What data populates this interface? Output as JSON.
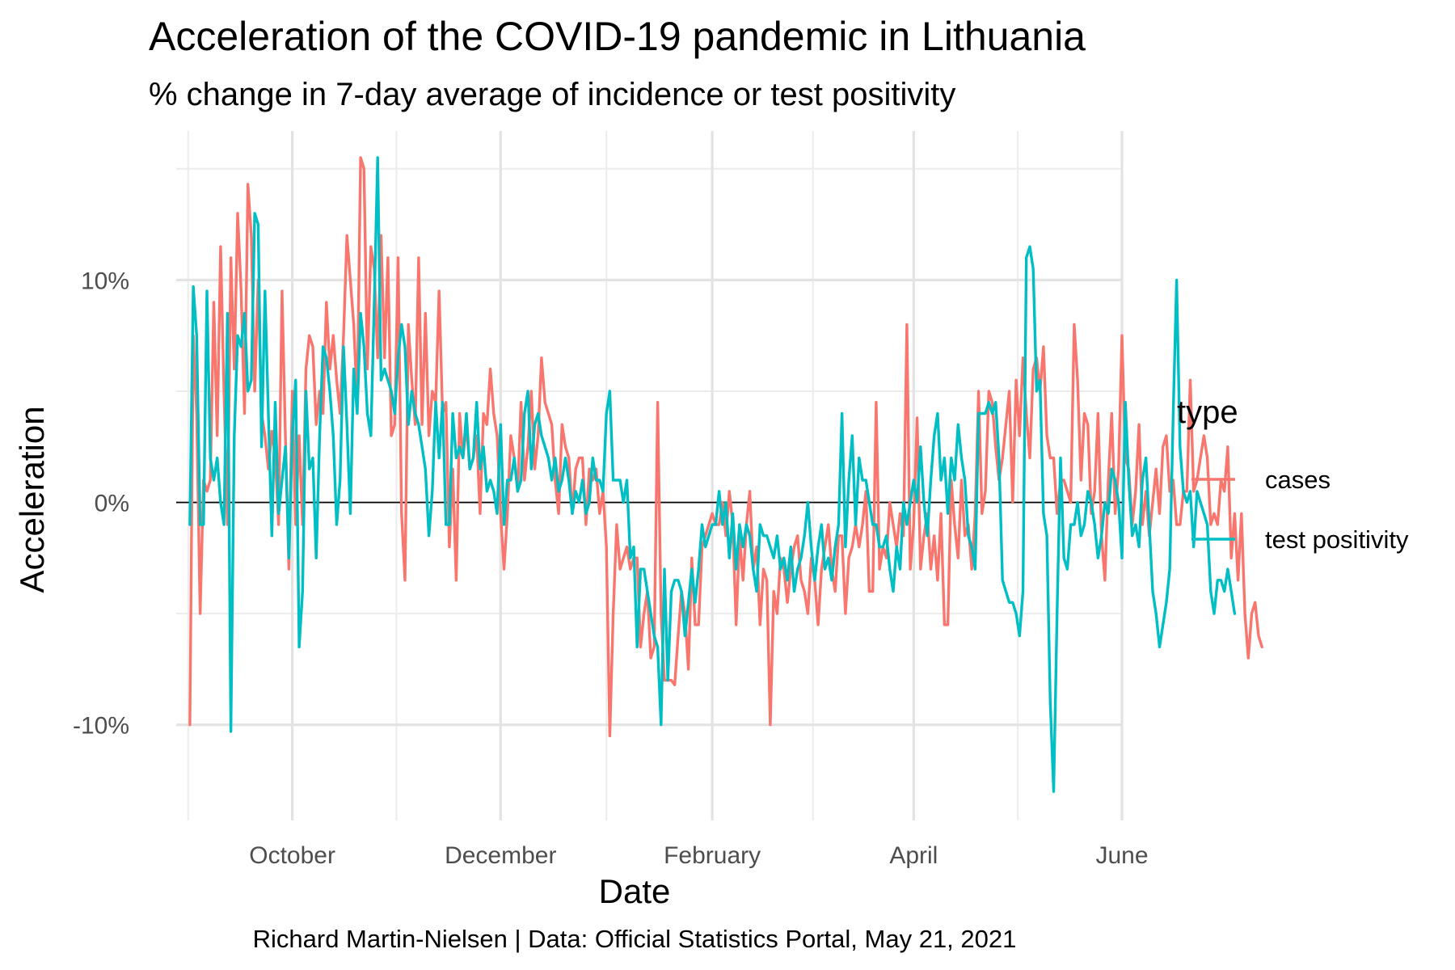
{
  "chart_data": {
    "type": "line",
    "title": "Acceleration of the COVID-19 pandemic in Lithuania",
    "subtitle": "% change in 7-day average of incidence or test positivity",
    "xlabel": "Date",
    "ylabel": "Acceleration",
    "caption": "Richard Martin-Nielsen | Data: Official Statistics Portal, May 21, 2021",
    "x_ticks": [
      {
        "date": "2020-10-01",
        "label": "October"
      },
      {
        "date": "2020-12-01",
        "label": "December"
      },
      {
        "date": "2021-02-01",
        "label": "February"
      },
      {
        "date": "2021-04-01",
        "label": "April"
      },
      {
        "date": "2021-06-01",
        "label": "June"
      }
    ],
    "y_ticks": [
      {
        "value": -10,
        "label": "-10%"
      },
      {
        "value": 0,
        "label": "0%"
      },
      {
        "value": 10,
        "label": "10%"
      }
    ],
    "xlim": [
      "2020-08-28",
      "2021-06-01"
    ],
    "ylim": [
      -14.3,
      16.7
    ],
    "grid": true,
    "zero_line": true,
    "legend": {
      "title": "type",
      "position": "right"
    },
    "x_start": "2020-09-01",
    "series": [
      {
        "name": "cases",
        "color": "#F8766D",
        "values": [
          -10,
          7.5,
          4,
          -5,
          1,
          0.5,
          1,
          9,
          3,
          11.5,
          5,
          -1,
          11,
          6,
          13,
          9.5,
          4,
          14.3,
          12,
          5,
          10,
          4,
          3,
          1.5,
          3.2,
          2,
          -1,
          9.5,
          2.8,
          -3,
          5,
          -1,
          3,
          -1,
          6,
          7.5,
          7,
          3.5,
          5,
          4,
          9,
          6,
          7.5,
          5.5,
          4,
          7.5,
          12,
          10,
          8,
          4.5,
          15.5,
          15,
          6,
          11.5,
          10.5,
          6.5,
          12,
          6.5,
          11,
          3,
          3.5,
          11,
          -0.5,
          -3.5,
          8,
          5.5,
          3.5,
          11,
          3.5,
          8.5,
          3,
          5,
          4.5,
          9.5,
          4,
          4.5,
          -2,
          1.5,
          -3.5,
          4,
          2,
          3.5,
          1.5,
          2,
          3,
          -0.5,
          4,
          3.5,
          6,
          4,
          3,
          -0.5,
          -3,
          -0.5,
          3,
          2,
          0.5,
          4.5,
          1,
          2.5,
          5,
          1.5,
          3,
          6.5,
          4.5,
          4,
          3.5,
          1,
          -0.5,
          3.5,
          2.5,
          2,
          -0.5,
          1.5,
          2,
          2,
          -1,
          1.5,
          1,
          1.5,
          -0.5,
          0.5,
          -2,
          -10.5,
          -5,
          -1,
          -3,
          -2.5,
          -2,
          -3,
          -2.5,
          -2.5,
          -6.5,
          -5,
          -4,
          -7,
          -6.5,
          4.5,
          -5,
          -8,
          -8,
          -8,
          -8.2,
          -6,
          -4,
          -5,
          -7.5,
          -2.5,
          -5.5,
          -5.5,
          -2,
          -1.5,
          -1,
          -0.5,
          -1,
          -1,
          0,
          -1.5,
          0.5,
          -1,
          -5.5,
          -1.5,
          -3.5,
          -1,
          0.5,
          -3,
          -2,
          -5.5,
          -3,
          -3.5,
          -10,
          -4,
          -5,
          -2.5,
          -3,
          -4.5,
          -3,
          -2,
          -1.5,
          -3.5,
          -4,
          -5,
          -2.5,
          -3.5,
          -5.5,
          -3,
          -2,
          -1,
          -3,
          -4,
          -1.5,
          -1.5,
          -5,
          -2.5,
          -2,
          -1,
          -2,
          -1,
          0.5,
          -4,
          -4,
          4.5,
          -3,
          -2,
          -2.5,
          0,
          -1,
          -2,
          -0.5,
          -1.5,
          8,
          -3,
          -1,
          3.8,
          -3,
          -1.5,
          -0.5,
          -3,
          -1.5,
          -3.5,
          -0.5,
          -5.5,
          -5.5,
          1,
          -1,
          -2.5,
          1,
          -1.5,
          -1,
          -3,
          -0.5,
          5,
          -0.5,
          0.5,
          5,
          4.5,
          2.5,
          1,
          2,
          3.5,
          5,
          0,
          5.5,
          3,
          6.5,
          4,
          2,
          6,
          6.5,
          5,
          7,
          3,
          2,
          2,
          -0.5,
          1,
          1,
          0.5,
          0,
          8,
          5.5,
          1,
          4,
          3.5,
          -0.5,
          0.5,
          4,
          -1.5,
          -3.5,
          1,
          4,
          -0.5,
          1.5,
          7.5,
          2,
          1.5,
          -1,
          0.5,
          3.5,
          -1,
          0.5,
          -1.5,
          0,
          1.5,
          -0.5,
          2.5,
          3,
          0.5,
          1,
          -1,
          -1,
          0.5,
          0.5,
          5.5,
          0.5,
          1,
          2,
          3,
          2,
          -1,
          -0.5,
          -1,
          1,
          0.5,
          2.5,
          -2.5,
          -0.5,
          -3.5,
          -0.5,
          -5,
          -7,
          -5,
          -4.5,
          -6,
          -6.5
        ]
      },
      {
        "name": "test positivity",
        "color": "#00BFC4",
        "values": [
          -1,
          9.7,
          7.5,
          -1,
          -1,
          9.5,
          2,
          1,
          2,
          0,
          -1,
          8.5,
          -10.3,
          3,
          7.5,
          7,
          8.5,
          5,
          5.5,
          13,
          12.5,
          2.5,
          9.5,
          4,
          -1.5,
          4.5,
          -0.5,
          1,
          2.5,
          -2.5,
          3,
          5.5,
          -6.5,
          -4,
          5,
          1.5,
          2,
          -2.5,
          3,
          7,
          6.5,
          5,
          3,
          -1,
          1,
          7,
          3.5,
          -0.5,
          6,
          4,
          8.5,
          7,
          4,
          3,
          9,
          15.5,
          5.5,
          6,
          5.5,
          5,
          4,
          6.5,
          8,
          7,
          3.5,
          5,
          4,
          3.5,
          2.5,
          1.5,
          -1.5,
          0.5,
          4.5,
          2,
          4.5,
          -1,
          -1,
          4,
          2,
          2.5,
          2,
          4,
          1.5,
          2,
          4.5,
          1.5,
          2.5,
          0.5,
          1,
          0.5,
          -0.5,
          3.5,
          -1,
          1,
          1,
          2,
          0.5,
          1,
          4,
          5,
          1.5,
          3.5,
          4,
          3,
          2.5,
          2,
          1,
          2,
          0.5,
          1,
          2,
          1,
          -0.5,
          0.5,
          0,
          1,
          -0.5,
          0,
          2,
          1,
          1,
          0.5,
          4,
          5,
          1,
          1,
          1,
          0,
          1,
          -2.5,
          -2,
          -6.5,
          -3,
          -3,
          -4,
          -5,
          -6,
          -6.5,
          -10,
          -3,
          -8,
          -4,
          -3.5,
          -3.5,
          -4,
          -6,
          -4.5,
          -3,
          -4.5,
          -3,
          -1,
          -2,
          -1.5,
          -1,
          -1,
          0.5,
          -1,
          0,
          -2.5,
          -0.5,
          -3,
          -1,
          -2,
          -1,
          -1.5,
          -3,
          -4,
          -1,
          -1.5,
          -1.5,
          -2,
          -2.5,
          -1.5,
          -3,
          -2.5,
          -3.5,
          -2,
          -4,
          -3,
          -2.5,
          -1.5,
          0,
          -2,
          -3.5,
          -2,
          -1,
          -3,
          -2.5,
          -3.5,
          -2,
          -1,
          4,
          -2,
          1,
          3,
          -1,
          2,
          1,
          1,
          0,
          -1,
          -1,
          -2,
          -2,
          -1.5,
          -3,
          -4,
          -2,
          -3,
          0,
          -1,
          0,
          1,
          0,
          2.5,
          0,
          -1.5,
          1,
          3,
          4,
          1,
          2,
          -0.5,
          2,
          1,
          3.5,
          2,
          1,
          -1.5,
          -2,
          -3,
          4,
          4,
          4,
          4.5,
          4,
          4.5,
          2,
          -3.5,
          -4,
          -4.5,
          -4.5,
          -5,
          -6,
          -4,
          11,
          11.5,
          10.5,
          5,
          5.5,
          -0.5,
          -1.5,
          -9,
          -13,
          -5,
          2,
          -2.5,
          -3,
          -1,
          -1,
          0,
          -1.5,
          -1,
          0.5,
          0,
          -1,
          -2.5,
          -1.5,
          0,
          -0.5,
          1.5,
          1,
          0,
          -2.5,
          4.5,
          1,
          -1.5,
          -1,
          -2,
          1,
          2,
          -1,
          -4,
          -5,
          -6.5,
          -5.5,
          -4.5,
          -3,
          4,
          10,
          2.5,
          0.5,
          0,
          0.5,
          -2,
          0.5,
          0,
          -0.5,
          -1,
          -4,
          -5,
          -3.5,
          -3.5,
          -4,
          -3,
          -4,
          -5
        ]
      }
    ]
  }
}
